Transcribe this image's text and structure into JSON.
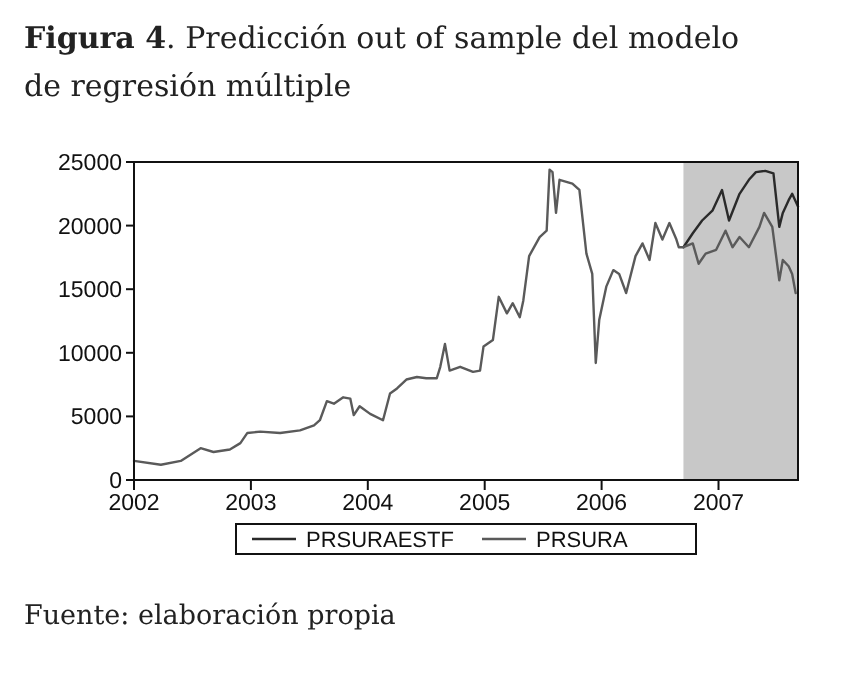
{
  "chart_data": {
    "type": "line",
    "title": "Figura 4. Predicción out of sample del modelo de regresión múltiple",
    "xlim": [
      2002,
      2007.68
    ],
    "xticks": [
      2002,
      2003,
      2004,
      2005,
      2006,
      2007
    ],
    "ylim": [
      0,
      25000
    ],
    "yticks": [
      0,
      5000,
      10000,
      15000,
      20000,
      25000
    ],
    "grid": false,
    "legend": "bottom",
    "bands": [
      {
        "axis": "x",
        "from": 2006.7,
        "to": 2007.68,
        "color": "#c8c8c8"
      }
    ],
    "series": [
      {
        "name": "PRSURAESTF",
        "color": "#2a2a2a",
        "x": [
          2006.7,
          2006.78,
          2006.86,
          2006.95,
          2007.03,
          2007.09,
          2007.18,
          2007.26,
          2007.32,
          2007.4,
          2007.47,
          2007.52,
          2007.55,
          2007.6,
          2007.63,
          2007.68
        ],
        "values": [
          18300,
          19400,
          20400,
          21200,
          22800,
          20400,
          22500,
          23600,
          24200,
          24300,
          24100,
          19900,
          21000,
          22000,
          22500,
          21500
        ]
      },
      {
        "name": "PRSURA",
        "color": "#5a5a5a",
        "x": [
          2002.0,
          2002.23,
          2002.4,
          2002.57,
          2002.68,
          2002.82,
          2002.91,
          2002.97,
          2003.08,
          2003.25,
          2003.42,
          2003.54,
          2003.59,
          2003.65,
          2003.71,
          2003.79,
          2003.85,
          2003.88,
          2003.93,
          2004.02,
          2004.13,
          2004.19,
          2004.25,
          2004.33,
          2004.42,
          2004.5,
          2004.59,
          2004.62,
          2004.66,
          2004.7,
          2004.79,
          2004.9,
          2004.96,
          2004.99,
          2005.07,
          2005.12,
          2005.19,
          2005.24,
          2005.3,
          2005.33,
          2005.38,
          2005.47,
          2005.53,
          2005.555,
          2005.58,
          2005.61,
          2005.64,
          2005.75,
          2005.81,
          2005.87,
          2005.92,
          2005.95,
          2005.98,
          2006.04,
          2006.1,
          2006.15,
          2006.21,
          2006.29,
          2006.35,
          2006.41,
          2006.46,
          2006.52,
          2006.58,
          2006.64,
          2006.66,
          2006.7,
          2006.78,
          2006.83,
          2006.89,
          2006.98,
          2007.06,
          2007.12,
          2007.18,
          2007.26,
          2007.35,
          2007.39,
          2007.46,
          2007.52,
          2007.55,
          2007.6,
          2007.63,
          2007.66
        ],
        "values": [
          1500,
          1200,
          1500,
          2500,
          2200,
          2400,
          2900,
          3700,
          3800,
          3700,
          3900,
          4300,
          4700,
          6200,
          6000,
          6500,
          6400,
          5100,
          5800,
          5200,
          4700,
          6800,
          7200,
          7900,
          8100,
          8000,
          8000,
          8900,
          10700,
          8600,
          8900,
          8500,
          8600,
          10500,
          11000,
          14400,
          13100,
          13900,
          12800,
          14100,
          17600,
          19100,
          19600,
          24400,
          24200,
          21000,
          23600,
          23300,
          22800,
          17800,
          16200,
          9200,
          12600,
          15200,
          16500,
          16200,
          14700,
          17600,
          18600,
          17300,
          20200,
          18900,
          20200,
          18900,
          18300,
          18300,
          18600,
          17000,
          17800,
          18100,
          19600,
          18300,
          19100,
          18300,
          19900,
          21000,
          19900,
          15700,
          17300,
          16800,
          16200,
          14700
        ]
      }
    ],
    "annotations": [
      "Fuente: elaboración propia"
    ]
  }
}
